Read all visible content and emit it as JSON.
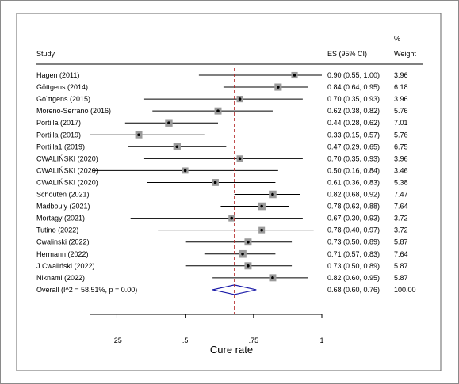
{
  "chart_data": {
    "type": "forest",
    "headers": {
      "study": "Study",
      "es": "ES (95% CI)",
      "weight_line1": "%",
      "weight_line2": "Weight"
    },
    "studies": [
      {
        "name": "Hagen (2011)",
        "es": 0.9,
        "lo": 0.55,
        "hi": 1.0,
        "ci_text": "0.90 (0.55, 1.00)",
        "weight": "3.96"
      },
      {
        "name": "Göttgens (2014)",
        "es": 0.84,
        "lo": 0.64,
        "hi": 0.95,
        "ci_text": "0.84 (0.64, 0.95)",
        "weight": "6.18"
      },
      {
        "name": "Go¨ttgens (2015)",
        "es": 0.7,
        "lo": 0.35,
        "hi": 0.93,
        "ci_text": "0.70 (0.35, 0.93)",
        "weight": "3.96"
      },
      {
        "name": "Moreno-Serrano (2016)",
        "es": 0.62,
        "lo": 0.38,
        "hi": 0.82,
        "ci_text": "0.62 (0.38, 0.82)",
        "weight": "5.76"
      },
      {
        "name": "Portilla (2017)",
        "es": 0.44,
        "lo": 0.28,
        "hi": 0.62,
        "ci_text": "0.44 (0.28, 0.62)",
        "weight": "7.01"
      },
      {
        "name": "Portilla (2019)",
        "es": 0.33,
        "lo": 0.15,
        "hi": 0.57,
        "ci_text": "0.33 (0.15, 0.57)",
        "weight": "5.76"
      },
      {
        "name": "Portilla1 (2019)",
        "es": 0.47,
        "lo": 0.29,
        "hi": 0.65,
        "ci_text": "0.47 (0.29, 0.65)",
        "weight": "6.75"
      },
      {
        "name": "CWALIŃSKI (2020)",
        "es": 0.7,
        "lo": 0.35,
        "hi": 0.93,
        "ci_text": "0.70 (0.35, 0.93)",
        "weight": "3.96"
      },
      {
        "name": "CWALIŃSKI (2020)",
        "es": 0.5,
        "lo": 0.16,
        "hi": 0.84,
        "ci_text": "0.50 (0.16, 0.84)",
        "weight": "3.46"
      },
      {
        "name": "CWALIŃSKI (2020)",
        "es": 0.61,
        "lo": 0.36,
        "hi": 0.83,
        "ci_text": "0.61 (0.36, 0.83)",
        "weight": "5.38"
      },
      {
        "name": "Schouten (2021)",
        "es": 0.82,
        "lo": 0.68,
        "hi": 0.92,
        "ci_text": "0.82 (0.68, 0.92)",
        "weight": "7.47"
      },
      {
        "name": "Madbouly (2021)",
        "es": 0.78,
        "lo": 0.63,
        "hi": 0.88,
        "ci_text": "0.78 (0.63, 0.88)",
        "weight": "7.64"
      },
      {
        "name": "Mortagy (2021)",
        "es": 0.67,
        "lo": 0.3,
        "hi": 0.93,
        "ci_text": "0.67 (0.30, 0.93)",
        "weight": "3.72"
      },
      {
        "name": "Tutino (2022)",
        "es": 0.78,
        "lo": 0.4,
        "hi": 0.97,
        "ci_text": "0.78 (0.40, 0.97)",
        "weight": "3.72"
      },
      {
        "name": "Cwalinski (2022)",
        "es": 0.73,
        "lo": 0.5,
        "hi": 0.89,
        "ci_text": "0.73 (0.50, 0.89)",
        "weight": "5.87"
      },
      {
        "name": "Hermann (2022)",
        "es": 0.71,
        "lo": 0.57,
        "hi": 0.83,
        "ci_text": "0.71 (0.57, 0.83)",
        "weight": "7.64"
      },
      {
        "name": "J Cwaliński  (2022)",
        "es": 0.73,
        "lo": 0.5,
        "hi": 0.89,
        "ci_text": "0.73 (0.50, 0.89)",
        "weight": "5.87"
      },
      {
        "name": "Niknami (2022)",
        "es": 0.82,
        "lo": 0.6,
        "hi": 0.95,
        "ci_text": "0.82 (0.60, 0.95)",
        "weight": "5.87"
      }
    ],
    "overall": {
      "name": "Overall  (I^2 = 58.51%, p = 0.00)",
      "es": 0.68,
      "lo": 0.6,
      "hi": 0.76,
      "ci_text": "0.68 (0.60, 0.76)",
      "weight": "100.00"
    },
    "x_ticks": [
      0.25,
      0.5,
      0.75,
      1
    ],
    "x_tick_labels": [
      ".25",
      ".5",
      ".75",
      "1"
    ],
    "xlabel": "Cure rate",
    "xlim": [
      0.15,
      1.0
    ],
    "colors": {
      "marker": "#000000",
      "box": "#9a9a9a",
      "line": "#000000",
      "reference_line": "#b22222",
      "diamond": "#1a1aa8",
      "border": "#666666"
    }
  }
}
